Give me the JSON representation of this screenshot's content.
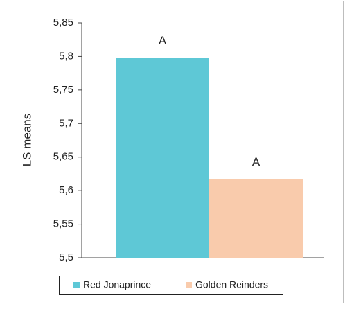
{
  "chart_data": {
    "type": "bar",
    "y_label": "LS means",
    "categories": [
      "Red Jonaprince",
      "Golden Reinders"
    ],
    "values": [
      5.798,
      5.617
    ],
    "colors": [
      "#5ec8d6",
      "#f9cbac"
    ],
    "annotations": [
      "A",
      "A"
    ],
    "ylim": [
      5.5,
      5.85
    ],
    "yticks": [
      {
        "value": 5.5,
        "label": "5,5"
      },
      {
        "value": 5.55,
        "label": "5,55"
      },
      {
        "value": 5.6,
        "label": "5,6"
      },
      {
        "value": 5.65,
        "label": "5,65"
      },
      {
        "value": 5.7,
        "label": "5,7"
      },
      {
        "value": 5.75,
        "label": "5,75"
      },
      {
        "value": 5.8,
        "label": "5,8"
      },
      {
        "value": 5.85,
        "label": "5,85"
      }
    ],
    "grid": false,
    "legend": "bottom"
  }
}
